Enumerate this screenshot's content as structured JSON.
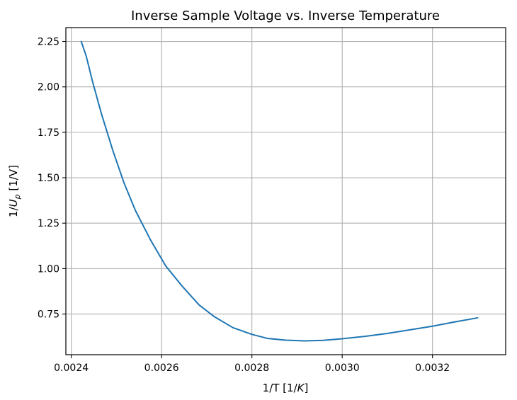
{
  "chart_data": {
    "type": "line",
    "title": "Inverse Sample Voltage vs. Inverse Temperature",
    "xlabel": "1/T [1/K]",
    "ylabel": "1/Up [1/V]",
    "xlim": [
      0.002388,
      0.003362
    ],
    "ylim": [
      0.5262,
      2.3261
    ],
    "grid": true,
    "line_color": "#1f77b4",
    "x_ticks": [
      0.0024,
      0.0026,
      0.0028,
      0.003,
      0.0032
    ],
    "x_tick_labels": [
      "0.0024",
      "0.0026",
      "0.0028",
      "0.0030",
      "0.0032"
    ],
    "y_ticks": [
      0.75,
      1.0,
      1.25,
      1.5,
      1.75,
      2.0,
      2.25
    ],
    "y_tick_labels": [
      "0.75",
      "1.00",
      "1.25",
      "1.50",
      "1.75",
      "2.00",
      "2.25"
    ],
    "series": [
      {
        "x": [
          0.002422,
          0.002433,
          0.002447,
          0.002467,
          0.002492,
          0.002517,
          0.002542,
          0.002575,
          0.002609,
          0.002645,
          0.002683,
          0.002717,
          0.002758,
          0.0028,
          0.002834,
          0.002875,
          0.002917,
          0.002958,
          0.003,
          0.00305,
          0.0031,
          0.00315,
          0.0032,
          0.00325,
          0.0033
        ],
        "y": [
          2.25,
          2.17,
          2.03,
          1.85,
          1.65,
          1.47,
          1.32,
          1.16,
          1.015,
          0.905,
          0.8,
          0.735,
          0.675,
          0.638,
          0.616,
          0.606,
          0.602,
          0.605,
          0.614,
          0.627,
          0.643,
          0.663,
          0.683,
          0.707,
          0.729
        ]
      }
    ]
  }
}
